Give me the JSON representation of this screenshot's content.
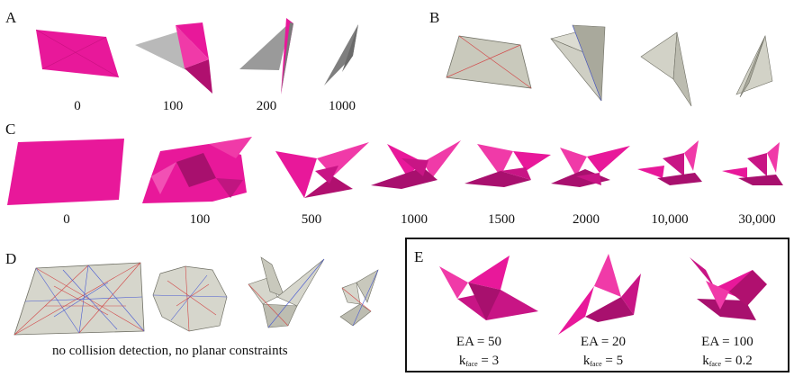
{
  "panels": {
    "A": {
      "letter": "A",
      "steps": [
        "0",
        "100",
        "200",
        "1000"
      ],
      "color": "#e8189a"
    },
    "B": {
      "letter": "B"
    },
    "C": {
      "letter": "C",
      "steps": [
        "0",
        "100",
        "500",
        "1000",
        "1500",
        "2000",
        "10,000",
        "30,000"
      ],
      "color": "#e8189a"
    },
    "D": {
      "letter": "D",
      "caption": "no collision detection, no planar constraints"
    },
    "E": {
      "letter": "E",
      "params": [
        {
          "ea": "EA = 50",
          "k_prefix": "k",
          "k_sub": "face",
          "k_value": " = 3"
        },
        {
          "ea": "EA = 20",
          "k_prefix": "k",
          "k_sub": "face",
          "k_value": " = 5"
        },
        {
          "ea": "EA = 100",
          "k_prefix": "k",
          "k_sub": "face",
          "k_value": " = 0.2"
        }
      ]
    }
  },
  "colors": {
    "magenta": "#e8189a",
    "magenta_dark": "#a8106e",
    "magenta_light": "#f250b4",
    "gray_face": "#cfcfc4",
    "gray_dark": "#8c8c8c",
    "paper_dark": "#a9a99c",
    "mountain_line": "#d24a4a",
    "valley_line": "#4a5bd2"
  }
}
